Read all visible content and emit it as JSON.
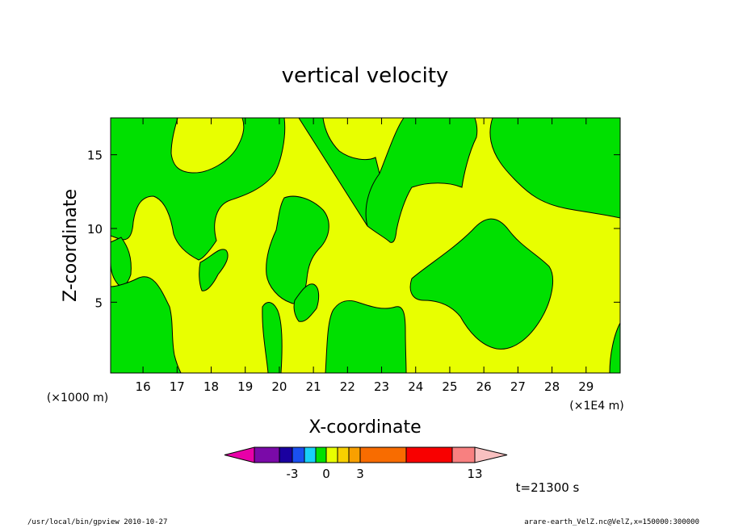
{
  "chart_data": {
    "type": "contour",
    "title": "vertical velocity",
    "xlabel": "X-coordinate",
    "ylabel": "Z-coordinate",
    "x_unit_left": "(×1000 m)",
    "x_unit_right": "(×1E4 m)",
    "x_ticks": [
      "16",
      "17",
      "18",
      "19",
      "20",
      "21",
      "22",
      "23",
      "24",
      "25",
      "26",
      "27",
      "28",
      "29"
    ],
    "x_tick_values": [
      16,
      17,
      18,
      19,
      20,
      21,
      22,
      23,
      24,
      25,
      26,
      27,
      28,
      29
    ],
    "xlim": [
      15.05,
      30.0
    ],
    "y_ticks": [
      "5",
      "10",
      "15"
    ],
    "y_tick_values": [
      5,
      10,
      15
    ],
    "ylim": [
      0.2,
      17.5
    ],
    "time_label": "t=21300 s",
    "colorbar": {
      "colors": [
        "#e800a8",
        "#7a0aa8",
        "#1a00a0",
        "#1a50f0",
        "#18d0f8",
        "#00e000",
        "#e8ff00",
        "#f8d000",
        "#f8a000",
        "#f86c00",
        "#f80000",
        "#f88080",
        "#f8c0c0"
      ],
      "labels": [
        "-3",
        "0",
        "3",
        "13"
      ],
      "label_values": [
        -3,
        0,
        3,
        13
      ]
    },
    "regions": [
      {
        "name": "negative",
        "color": "#00e000"
      },
      {
        "name": "positive",
        "color": "#e8ff00"
      }
    ]
  },
  "footer": {
    "left": "/usr/local/bin/gpview   2010-10-27",
    "right": "arare-earth_VelZ.nc@VelZ,x=150000:300000"
  }
}
